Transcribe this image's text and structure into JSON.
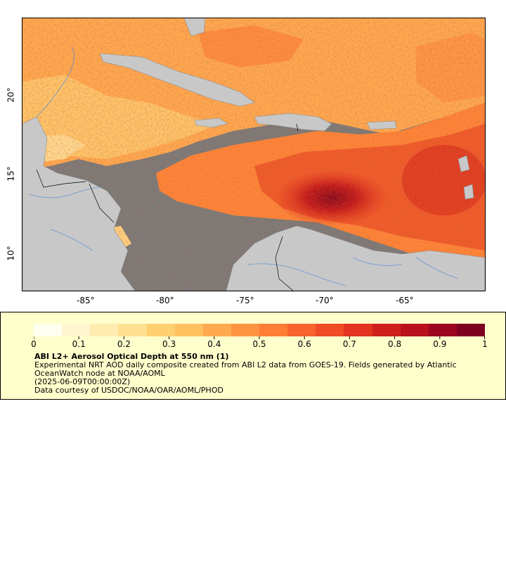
{
  "map": {
    "lon_ticks": [
      "-85°",
      "-80°",
      "-75°",
      "-70°",
      "-65°"
    ],
    "lat_ticks": [
      "20°",
      "15°",
      "10°"
    ]
  },
  "legend": {
    "colorbar_ticks": [
      "0",
      "0.1",
      "0.2",
      "0.3",
      "0.4",
      "0.5",
      "0.6",
      "0.7",
      "0.8",
      "0.9",
      "1"
    ],
    "colorbar_colors": [
      "#fffff0",
      "#fff5d0",
      "#ffecb0",
      "#ffe090",
      "#ffd070",
      "#ffc060",
      "#ffaa50",
      "#ff9440",
      "#ff7d35",
      "#f8642c",
      "#ef4b25",
      "#e2341f",
      "#d0201b",
      "#b8111c",
      "#9c0620",
      "#7e0020"
    ],
    "title": "ABI L2+ Aerosol Optical Depth at 550 nm (1)",
    "line1": "Experimental NRT AOD daily composite created from ABI L2 data from GOES-19. Fields generated by Atlantic",
    "line2": "OceanWatch node at NOAA/AOML",
    "line3": "(2025-06-09T00:00:00Z)",
    "line4": "Data courtesy of USDOC/NOAA/OAR/AOML/PHOD"
  },
  "colors": {
    "land": "#c8c8c8",
    "no_data": "#7a7a7a",
    "rivers": "#5b8fd6"
  }
}
